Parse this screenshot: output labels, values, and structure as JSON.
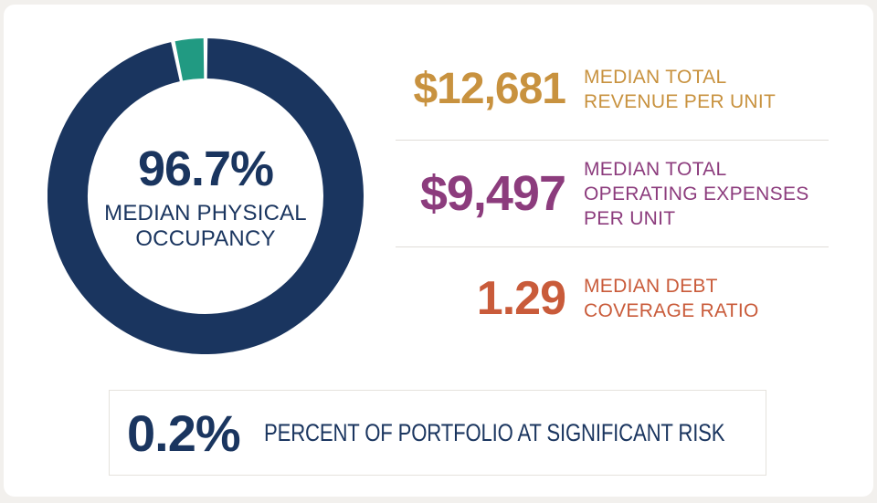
{
  "colors": {
    "navy": "#1A355F",
    "teal": "#219A82",
    "gold": "#C8923F",
    "purple": "#8C3C7D",
    "orange": "#C95B3A",
    "divider": "#E0DDD8",
    "page_background": "#F2F0ED",
    "card_background": "#FFFFFF",
    "box_border": "#E5E2DD"
  },
  "chart_data": {
    "type": "donut",
    "title": "Median Physical Occupancy",
    "center_value": "96.7%",
    "center_label_lines": [
      "MEDIAN PHYSICAL",
      "OCCUPANCY"
    ],
    "slices": [
      {
        "name": "occupied",
        "value": 96.7,
        "color": "#1A355F"
      },
      {
        "name": "remainder",
        "value": 3.3,
        "color": "#219A82"
      }
    ],
    "start_angle_deg": 0,
    "gap_deg": 1.5,
    "ring_thickness_px": 44,
    "legend": "none"
  },
  "metrics": [
    {
      "value": "$12,681",
      "label_lines": [
        "MEDIAN TOTAL",
        "REVENUE PER UNIT"
      ],
      "color": "#C8923F"
    },
    {
      "value": "$9,497",
      "label_lines": [
        "MEDIAN TOTAL",
        "OPERATING EXPENSES",
        "PER UNIT"
      ],
      "color": "#8C3C7D"
    },
    {
      "value": "1.29",
      "label_lines": [
        "MEDIAN DEBT",
        "COVERAGE RATIO"
      ],
      "color": "#C95B3A"
    }
  ],
  "risk_box": {
    "value": "0.2%",
    "label": "PERCENT OF PORTFOLIO AT SIGNIFICANT RISK",
    "color": "#1A355F"
  }
}
